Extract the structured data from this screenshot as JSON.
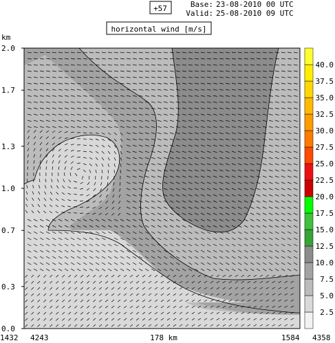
{
  "header": {
    "lead_time": "+57",
    "base_label": "Base:",
    "base_value": "23-08-2010  00 UTC",
    "valid_label": "Valid:",
    "valid_value": "25-08-2010  09 UTC",
    "field_title": "horizontal wind [m/s]"
  },
  "chart_data": {
    "type": "heatmap",
    "title": "horizontal wind [m/s]",
    "ylabel": "km",
    "ylim": [
      0.0,
      2.0
    ],
    "y_ticks": [
      "2.0",
      "1.7",
      "1.3",
      "1.0",
      "0.7",
      "0.3",
      "0.0"
    ],
    "x_tick_labels": [
      "1432",
      "4243",
      "178 km",
      "1584",
      "4358"
    ],
    "colorbar": {
      "levels": [
        2.5,
        5.0,
        7.5,
        10.0,
        12.5,
        15.0,
        17.5,
        20.0,
        22.5,
        25.0,
        27.5,
        30.0,
        32.5,
        35.0,
        37.5,
        40.0
      ],
      "labels": [
        "2.5",
        "5.0",
        "7.5",
        "10.0",
        "12.5",
        "15.0",
        "17.5",
        "20.0",
        "22.5",
        "25.0",
        "27.5",
        "30.0",
        "32.5",
        "35.0",
        "37.5",
        "40.0"
      ],
      "colors": [
        "#f2f2f2",
        "#d9d9d9",
        "#bcbcbc",
        "#a3a3a3",
        "#8c8c8c",
        "#36a436",
        "#3fc03f",
        "#00ff00",
        "#cc0000",
        "#ee1010",
        "#ff4a00",
        "#ff7a00",
        "#ff9c00",
        "#ffba00",
        "#ffd800",
        "#ffee00",
        "#ffff30"
      ]
    },
    "shading_regions": [
      {
        "name": "below-5",
        "color": "#d9d9d9"
      },
      {
        "name": "5-7.5",
        "color": "#bcbcbc"
      },
      {
        "name": "7.5-10",
        "color": "#a3a3a3"
      },
      {
        "name": "10-12.5",
        "color": "#8c8c8c"
      }
    ]
  }
}
